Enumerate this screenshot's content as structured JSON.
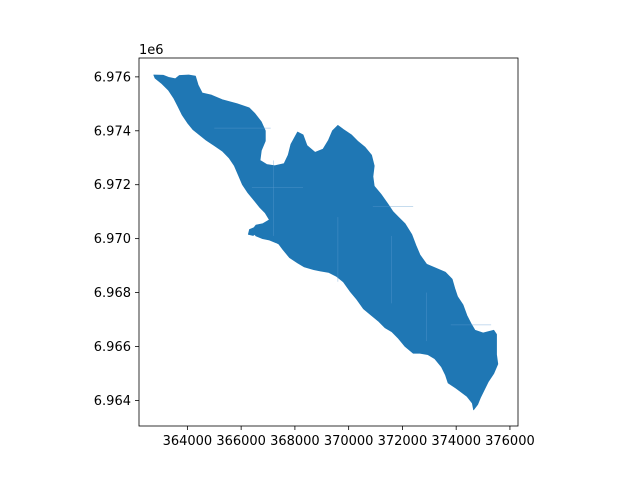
{
  "chart_data": {
    "type": "map",
    "title": "",
    "xlabel": "",
    "ylabel": "",
    "xlim": [
      362200,
      376300
    ],
    "ylim": [
      6963050,
      6976700
    ],
    "grid": false,
    "legend": "none",
    "y_offset_text": "1e6",
    "x_ticks": [
      {
        "value": 364000,
        "label": "364000"
      },
      {
        "value": 366000,
        "label": "366000"
      },
      {
        "value": 368000,
        "label": "368000"
      },
      {
        "value": 370000,
        "label": "370000"
      },
      {
        "value": 372000,
        "label": "372000"
      },
      {
        "value": 374000,
        "label": "374000"
      },
      {
        "value": 376000,
        "label": "376000"
      }
    ],
    "y_ticks": [
      {
        "value": 6964000,
        "label": "6.964"
      },
      {
        "value": 6966000,
        "label": "6.966"
      },
      {
        "value": 6968000,
        "label": "6.968"
      },
      {
        "value": 6970000,
        "label": "6.970"
      },
      {
        "value": 6972000,
        "label": "6.972"
      },
      {
        "value": 6974000,
        "label": "6.974"
      },
      {
        "value": 6976000,
        "label": "6.976"
      }
    ],
    "fill_color": "#1f77b4",
    "edge_color": "#5e9bd0",
    "polygon": [
      [
        362750,
        6976070
      ],
      [
        363100,
        6976060
      ],
      [
        363300,
        6975980
      ],
      [
        363550,
        6975930
      ],
      [
        363700,
        6976050
      ],
      [
        364050,
        6976070
      ],
      [
        364300,
        6976030
      ],
      [
        364400,
        6975700
      ],
      [
        364550,
        6975400
      ],
      [
        364900,
        6975320
      ],
      [
        365300,
        6975150
      ],
      [
        365850,
        6975000
      ],
      [
        366300,
        6974850
      ],
      [
        366500,
        6974650
      ],
      [
        366750,
        6974330
      ],
      [
        366900,
        6974000
      ],
      [
        366900,
        6973620
      ],
      [
        366750,
        6973270
      ],
      [
        366700,
        6972900
      ],
      [
        366950,
        6972750
      ],
      [
        367250,
        6972700
      ],
      [
        367600,
        6972780
      ],
      [
        367750,
        6973100
      ],
      [
        367850,
        6973500
      ],
      [
        368100,
        6973950
      ],
      [
        368300,
        6973850
      ],
      [
        368450,
        6973450
      ],
      [
        368750,
        6973200
      ],
      [
        369050,
        6973320
      ],
      [
        369250,
        6973650
      ],
      [
        369400,
        6974000
      ],
      [
        369600,
        6974200
      ],
      [
        369800,
        6974050
      ],
      [
        370100,
        6973850
      ],
      [
        370350,
        6973600
      ],
      [
        370600,
        6973400
      ],
      [
        370850,
        6973100
      ],
      [
        370950,
        6972700
      ],
      [
        370900,
        6972300
      ],
      [
        370950,
        6971950
      ],
      [
        371200,
        6971650
      ],
      [
        371450,
        6971300
      ],
      [
        371650,
        6971000
      ],
      [
        371850,
        6970800
      ],
      [
        372100,
        6970550
      ],
      [
        372350,
        6970150
      ],
      [
        372500,
        6969750
      ],
      [
        372650,
        6969400
      ],
      [
        372900,
        6969050
      ],
      [
        373250,
        6968900
      ],
      [
        373600,
        6968750
      ],
      [
        373850,
        6968500
      ],
      [
        373950,
        6968150
      ],
      [
        374050,
        6967850
      ],
      [
        374250,
        6967550
      ],
      [
        374400,
        6967150
      ],
      [
        374550,
        6966850
      ],
      [
        374700,
        6966600
      ],
      [
        375000,
        6966500
      ],
      [
        375400,
        6966600
      ],
      [
        375500,
        6966450
      ],
      [
        375500,
        6966100
      ],
      [
        375500,
        6965700
      ],
      [
        375550,
        6965350
      ],
      [
        375400,
        6965000
      ],
      [
        375200,
        6964700
      ],
      [
        375050,
        6964400
      ],
      [
        374900,
        6964100
      ],
      [
        374800,
        6963850
      ],
      [
        374650,
        6963650
      ],
      [
        374600,
        6963900
      ],
      [
        374400,
        6964150
      ],
      [
        374000,
        6964450
      ],
      [
        373700,
        6964650
      ],
      [
        373600,
        6964950
      ],
      [
        373450,
        6965250
      ],
      [
        373200,
        6965550
      ],
      [
        372950,
        6965700
      ],
      [
        372650,
        6965750
      ],
      [
        372400,
        6965750
      ],
      [
        372100,
        6966000
      ],
      [
        371850,
        6966300
      ],
      [
        371600,
        6966550
      ],
      [
        371350,
        6966700
      ],
      [
        371100,
        6966950
      ],
      [
        370850,
        6967150
      ],
      [
        370550,
        6967400
      ],
      [
        370300,
        6967750
      ],
      [
        370050,
        6968050
      ],
      [
        369800,
        6968400
      ],
      [
        369550,
        6968600
      ],
      [
        369250,
        6968750
      ],
      [
        368950,
        6968800
      ],
      [
        368700,
        6968850
      ],
      [
        368350,
        6968950
      ],
      [
        368100,
        6969100
      ],
      [
        367800,
        6969300
      ],
      [
        367550,
        6969600
      ],
      [
        367400,
        6969800
      ],
      [
        367300,
        6969850
      ],
      [
        367050,
        6969950
      ],
      [
        366800,
        6970000
      ],
      [
        366550,
        6970100
      ],
      [
        366400,
        6970300
      ],
      [
        366550,
        6970500
      ],
      [
        366800,
        6970550
      ],
      [
        367050,
        6970700
      ],
      [
        366900,
        6970950
      ],
      [
        366700,
        6971150
      ],
      [
        366500,
        6971400
      ],
      [
        366250,
        6971700
      ],
      [
        366050,
        6972000
      ],
      [
        365900,
        6972350
      ],
      [
        365750,
        6972700
      ],
      [
        365550,
        6973000
      ],
      [
        365300,
        6973250
      ],
      [
        365000,
        6973450
      ],
      [
        364700,
        6973650
      ],
      [
        364450,
        6973850
      ],
      [
        364200,
        6974050
      ],
      [
        364000,
        6974300
      ],
      [
        363800,
        6974600
      ],
      [
        363650,
        6974900
      ],
      [
        363500,
        6975200
      ],
      [
        363300,
        6975500
      ],
      [
        363050,
        6975750
      ],
      [
        362800,
        6975950
      ]
    ],
    "internal_lines": [
      [
        [
          365000,
          6974100
        ],
        [
          367100,
          6974100
        ]
      ],
      [
        [
          367200,
          6972900
        ],
        [
          367200,
          6970100
        ]
      ],
      [
        [
          369600,
          6970800
        ],
        [
          369600,
          6968400
        ]
      ],
      [
        [
          370900,
          6971200
        ],
        [
          372400,
          6971200
        ]
      ],
      [
        [
          371600,
          6970100
        ],
        [
          371600,
          6967600
        ]
      ],
      [
        [
          372900,
          6968000
        ],
        [
          372900,
          6966200
        ]
      ],
      [
        [
          373800,
          6966800
        ],
        [
          375300,
          6966800
        ]
      ],
      [
        [
          366400,
          6971900
        ],
        [
          368300,
          6971900
        ]
      ]
    ]
  }
}
